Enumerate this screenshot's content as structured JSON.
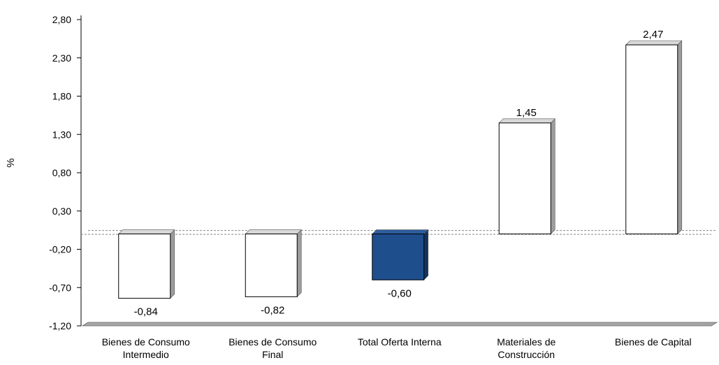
{
  "chart_data": {
    "type": "bar",
    "title": "",
    "xlabel": "",
    "ylabel": "%",
    "ylim": [
      -1.2,
      2.8
    ],
    "yticks": [
      -1.2,
      -0.7,
      -0.2,
      0.3,
      0.8,
      1.3,
      1.8,
      2.3,
      2.8
    ],
    "ytick_labels": [
      "-1,20",
      "-0,70",
      "-0,20",
      "0,30",
      "0,80",
      "1,30",
      "1,80",
      "2,30",
      "2,80"
    ],
    "categories": [
      [
        "Bienes de Consumo",
        "Intermedio"
      ],
      [
        "Bienes de Consumo",
        "Final"
      ],
      [
        "Total Oferta Interna"
      ],
      [
        "Materiales de",
        "Construcción"
      ],
      [
        "Bienes de Capital"
      ]
    ],
    "values": [
      -0.84,
      -0.82,
      -0.6,
      1.45,
      2.47
    ],
    "value_labels": [
      "-0,84",
      "-0,82",
      "-0,60",
      "1,45",
      "2,47"
    ],
    "bar_colors": [
      "#ffffff",
      "#ffffff",
      "#1f4e8c",
      "#ffffff",
      "#ffffff"
    ],
    "grid": false,
    "legend": "none",
    "style": "3d-bars"
  }
}
